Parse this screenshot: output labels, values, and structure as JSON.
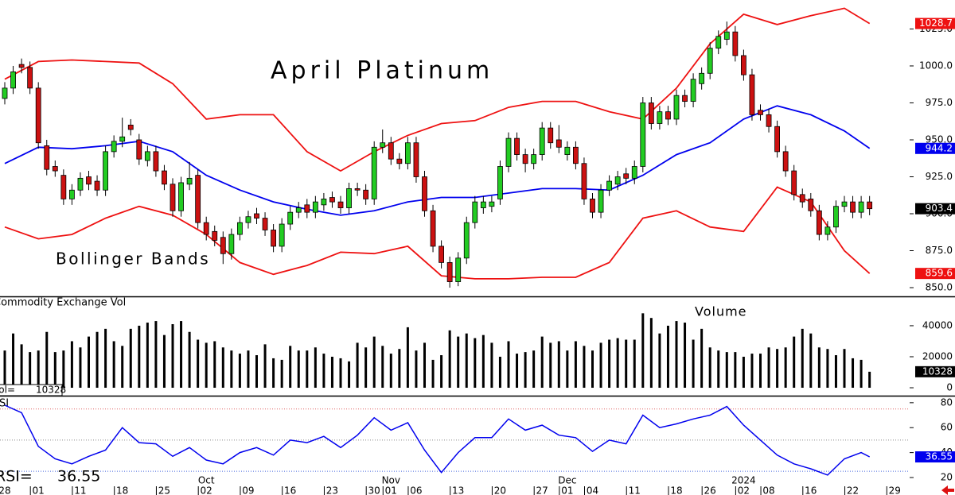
{
  "chart_data": [
    {
      "type": "candlestick",
      "title": "April Platinum",
      "annotation": "Bollinger Bands",
      "up_color": "#22cc22",
      "down_color": "#cc1111",
      "open": [
        978,
        985,
        1001,
        999,
        985,
        946,
        932,
        926,
        910,
        916,
        925,
        922,
        916,
        942,
        949,
        960,
        950,
        936,
        942,
        929,
        920,
        902,
        920,
        926,
        894,
        888,
        884,
        873,
        886,
        894,
        900,
        897,
        889,
        878,
        893,
        901,
        906,
        901,
        906,
        911,
        908,
        904,
        917,
        916,
        910,
        945,
        948,
        937,
        934,
        948,
        925,
        902,
        878,
        867,
        854,
        870,
        894,
        904,
        905,
        910,
        932,
        951,
        940,
        934,
        940,
        958,
        950,
        940,
        945,
        934,
        910,
        901,
        916,
        920,
        927,
        924,
        932,
        975,
        961,
        969,
        964,
        980,
        976,
        988,
        995,
        1012,
        1018,
        1023,
        1007,
        994,
        970,
        967,
        959,
        942,
        929,
        913,
        910,
        902,
        886,
        891,
        905,
        908,
        901,
        908,
        null,
        null,
        null
      ],
      "high": [
        989,
        1000,
        1005,
        1003,
        989,
        950,
        936,
        930,
        920,
        928,
        929,
        926,
        946,
        953,
        965,
        964,
        954,
        946,
        946,
        933,
        924,
        925,
        935,
        930,
        898,
        892,
        888,
        890,
        898,
        902,
        904,
        901,
        893,
        897,
        905,
        908,
        910,
        912,
        914,
        915,
        912,
        921,
        921,
        920,
        949,
        957,
        952,
        941,
        952,
        952,
        929,
        906,
        882,
        871,
        874,
        898,
        912,
        912,
        912,
        936,
        955,
        955,
        944,
        944,
        962,
        962,
        960,
        949,
        949,
        938,
        914,
        920,
        926,
        929,
        931,
        936,
        979,
        979,
        973,
        973,
        984,
        984,
        995,
        999,
        1016,
        1024,
        1030,
        1027,
        1011,
        998,
        974,
        971,
        963,
        946,
        933,
        917,
        914,
        906,
        895,
        909,
        912,
        912,
        912,
        912,
        null,
        null,
        null
      ],
      "low": [
        974,
        981,
        995,
        981,
        944,
        926,
        925,
        906,
        906,
        912,
        916,
        912,
        912,
        938,
        945,
        953,
        933,
        932,
        925,
        916,
        898,
        898,
        916,
        890,
        882,
        878,
        866,
        869,
        882,
        890,
        893,
        885,
        874,
        874,
        889,
        897,
        897,
        897,
        902,
        904,
        900,
        900,
        912,
        906,
        906,
        941,
        933,
        930,
        930,
        921,
        898,
        874,
        863,
        850,
        851,
        866,
        890,
        900,
        901,
        906,
        928,
        936,
        928,
        930,
        936,
        944,
        941,
        936,
        930,
        906,
        897,
        897,
        912,
        916,
        920,
        920,
        928,
        957,
        957,
        960,
        960,
        972,
        972,
        984,
        991,
        1008,
        1014,
        1003,
        990,
        963,
        963,
        955,
        938,
        925,
        909,
        904,
        898,
        882,
        882,
        887,
        901,
        897,
        897,
        899,
        null,
        null,
        null
      ],
      "close": [
        985,
        996,
        999,
        985,
        948,
        930,
        929,
        910,
        916,
        924,
        920,
        916,
        942,
        949,
        952,
        957,
        937,
        942,
        929,
        920,
        902,
        921,
        924,
        894,
        886,
        882,
        873,
        886,
        894,
        898,
        897,
        889,
        878,
        893,
        901,
        904,
        901,
        908,
        910,
        908,
        904,
        917,
        916,
        910,
        945,
        948,
        937,
        934,
        948,
        925,
        902,
        878,
        867,
        854,
        870,
        894,
        908,
        908,
        908,
        932,
        951,
        940,
        934,
        940,
        958,
        948,
        945,
        945,
        934,
        910,
        901,
        916,
        922,
        925,
        924,
        932,
        975,
        961,
        969,
        964,
        980,
        976,
        991,
        995,
        1012,
        1020,
        1023,
        1007,
        994,
        967,
        967,
        959,
        942,
        929,
        913,
        908,
        902,
        886,
        891,
        905,
        908,
        901,
        908,
        903.4,
        null,
        null,
        null
      ],
      "bands": {
        "x": [
          0,
          4,
          8,
          12,
          16,
          20,
          24,
          28,
          32,
          36,
          40,
          44,
          48,
          52,
          56,
          60,
          64,
          68,
          72,
          76,
          80,
          84,
          88,
          92,
          96,
          100,
          103
        ],
        "upper": [
          991,
          1003,
          1004,
          1003,
          1002,
          988,
          964,
          967,
          967,
          942,
          929,
          942,
          953,
          961,
          963,
          972,
          976,
          976,
          969,
          964,
          985,
          1015,
          1035,
          1028,
          1034,
          1039,
          1028.7
        ],
        "middle": [
          934,
          945,
          944,
          946,
          949,
          942,
          926,
          916,
          908,
          903,
          899,
          902,
          908,
          911,
          911,
          914,
          917,
          917,
          916,
          926,
          940,
          948,
          964,
          973,
          967,
          956,
          944.2
        ],
        "lower": [
          891,
          883,
          886,
          897,
          905,
          899,
          886,
          867,
          859,
          865,
          874,
          873,
          878,
          858,
          856,
          856,
          857,
          857,
          867,
          897,
          902,
          891,
          888,
          918,
          908,
          875,
          859.6
        ],
        "upper_color": "#ee1111",
        "middle_color": "#0000ee",
        "lower_color": "#ee1111"
      },
      "ylim": [
        844.1,
        1044.6
      ],
      "yticks": [
        {
          "value": 850,
          "label": "850.0"
        },
        {
          "value": 875,
          "label": "875.0"
        },
        {
          "value": 900,
          "label": "900.0"
        },
        {
          "value": 925,
          "label": "925.0"
        },
        {
          "value": 950,
          "label": "950.0"
        },
        {
          "value": 975,
          "label": "975.0"
        },
        {
          "value": 1000,
          "label": "1000.0"
        },
        {
          "value": 1025,
          "label": "1025.0"
        }
      ]
    },
    {
      "type": "bar",
      "title": "Commodity Exchange Vol",
      "annotation": "Volume",
      "readout_label": "Vol=",
      "color": "#000000",
      "values": [
        24000,
        35000,
        28000,
        23000,
        24000,
        36000,
        23000,
        24000,
        30000,
        26000,
        33000,
        36000,
        38000,
        30000,
        27000,
        38000,
        40000,
        42000,
        43000,
        34000,
        41000,
        43000,
        36000,
        31000,
        29000,
        30000,
        26000,
        24000,
        22000,
        24000,
        21000,
        28000,
        19000,
        18000,
        27000,
        24000,
        24000,
        26000,
        22000,
        20000,
        19000,
        17000,
        29000,
        26000,
        33000,
        27000,
        22000,
        25000,
        39000,
        24000,
        29000,
        18000,
        21000,
        37000,
        33000,
        35000,
        32000,
        34000,
        29000,
        20000,
        30000,
        22000,
        23000,
        24000,
        33000,
        29000,
        30000,
        24000,
        30000,
        27000,
        24000,
        29000,
        31000,
        32000,
        31000,
        31000,
        48000,
        45000,
        35000,
        40000,
        43000,
        42000,
        31000,
        38000,
        26000,
        24000,
        23000,
        23000,
        20000,
        22000,
        22000,
        26000,
        25000,
        26000,
        33000,
        38000,
        35000,
        26000,
        25000,
        21000,
        25000,
        19000,
        18000,
        10328,
        null,
        null,
        null
      ],
      "ylim": [
        -4600,
        57900
      ],
      "yticks": [
        0,
        20000,
        40000
      ]
    },
    {
      "type": "line",
      "title": "RSI",
      "readout_label": "RSI=",
      "color": "#0000ee",
      "categories": [
        "28",
        null,
        null,
        null,
        "01",
        null,
        null,
        null,
        null,
        "11",
        null,
        null,
        null,
        null,
        "18",
        null,
        null,
        null,
        null,
        "25",
        null,
        null,
        null,
        null,
        "02",
        null,
        null,
        null,
        null,
        "09",
        null,
        null,
        null,
        null,
        "16",
        null,
        null,
        null,
        null,
        "23",
        null,
        null,
        null,
        null,
        "30",
        null,
        "01",
        null,
        null,
        "06",
        null,
        null,
        null,
        null,
        "13",
        null,
        null,
        null,
        null,
        "20",
        null,
        null,
        null,
        null,
        "27",
        null,
        null,
        "01",
        null,
        null,
        "04",
        null,
        null,
        null,
        null,
        "11",
        null,
        null,
        null,
        null,
        "18",
        null,
        null,
        null,
        "26",
        null,
        null,
        null,
        "02",
        null,
        null,
        "08",
        null,
        null,
        null,
        null,
        "16",
        null,
        null,
        null,
        null,
        "22",
        null,
        null,
        null,
        null,
        "29"
      ],
      "months": [
        null,
        null,
        null,
        null,
        null,
        null,
        null,
        null,
        null,
        null,
        null,
        null,
        null,
        null,
        null,
        null,
        null,
        null,
        null,
        null,
        null,
        null,
        null,
        null,
        "Oct",
        null,
        null,
        null,
        null,
        null,
        null,
        null,
        null,
        null,
        null,
        null,
        null,
        null,
        null,
        null,
        null,
        null,
        null,
        null,
        null,
        null,
        "Nov",
        null,
        null,
        null,
        null,
        null,
        null,
        null,
        null,
        null,
        null,
        null,
        null,
        null,
        null,
        null,
        null,
        null,
        null,
        null,
        null,
        "Dec",
        null,
        null,
        null,
        null,
        null,
        null,
        null,
        null,
        null,
        null,
        null,
        null,
        null,
        null,
        null,
        null,
        null,
        null,
        null,
        null,
        "2024",
        null,
        null,
        null,
        null,
        null,
        null,
        null,
        null,
        null,
        null,
        null,
        null,
        null,
        null,
        null,
        null,
        null,
        null
      ],
      "x": [
        0,
        2,
        4,
        6,
        8,
        10,
        12,
        14,
        16,
        18,
        20,
        22,
        24,
        26,
        28,
        30,
        32,
        34,
        36,
        38,
        40,
        42,
        44,
        46,
        48,
        50,
        52,
        54,
        56,
        58,
        60,
        62,
        64,
        66,
        68,
        70,
        72,
        74,
        76,
        78,
        80,
        82,
        84,
        86,
        88,
        90,
        92,
        94,
        96,
        98,
        100,
        102,
        103
      ],
      "values": [
        78,
        72,
        45,
        35,
        31,
        37,
        42,
        60,
        48,
        47,
        37,
        44,
        34,
        31,
        40,
        44,
        38,
        50,
        48,
        53,
        44,
        54,
        68,
        58,
        64,
        42,
        24,
        40,
        52,
        52,
        67,
        58,
        62,
        54,
        52,
        41,
        50,
        47,
        70,
        60,
        63,
        67,
        70,
        77,
        62,
        50,
        38,
        31,
        27,
        22,
        35,
        40,
        36.55
      ],
      "reference_lines": [
        {
          "value": 75,
          "color": "#e06060"
        },
        {
          "value": 50,
          "color": "#888888"
        },
        {
          "value": 25,
          "color": "#4466dd"
        }
      ],
      "ylim": [
        13,
        85
      ],
      "yticks": [
        20,
        40,
        60,
        80
      ]
    }
  ]
}
